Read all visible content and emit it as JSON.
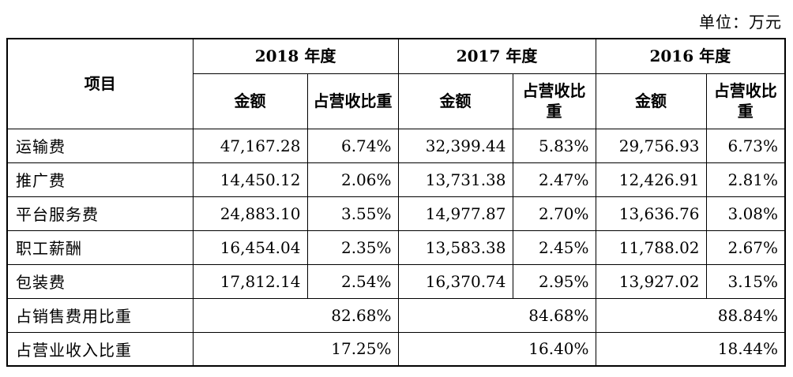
{
  "unit_label": "单位：万元",
  "headers": {
    "item": "项目",
    "years": [
      "2018 年度",
      "2017 年度",
      "2016 年度"
    ],
    "amount": "金额",
    "ratio_2018": "占营收比重",
    "ratio_2017": "占营收比重",
    "ratio_2016": "占营收比重"
  },
  "rows": [
    {
      "label": "运输费",
      "values": [
        "47,167.28",
        "6.74%",
        "32,399.44",
        "5.83%",
        "29,756.93",
        "6.73%"
      ]
    },
    {
      "label": "推广费",
      "values": [
        "14,450.12",
        "2.06%",
        "13,731.38",
        "2.47%",
        "12,426.91",
        "2.81%"
      ]
    },
    {
      "label": "平台服务费",
      "values": [
        "24,883.10",
        "3.55%",
        "14,977.87",
        "2.70%",
        "13,636.76",
        "3.08%"
      ]
    },
    {
      "label": "职工薪酬",
      "values": [
        "16,454.04",
        "2.35%",
        "13,583.38",
        "2.45%",
        "11,788.02",
        "2.67%"
      ]
    },
    {
      "label": "包装费",
      "values": [
        "17,812.14",
        "2.54%",
        "16,370.74",
        "2.95%",
        "13,927.02",
        "3.15%"
      ]
    }
  ],
  "summary_rows": [
    {
      "label": "占销售费用比重",
      "values": [
        "82.68%",
        "84.68%",
        "88.84%"
      ]
    },
    {
      "label": "占营业收入比重",
      "values": [
        "17.25%",
        "16.40%",
        "18.44%"
      ]
    }
  ]
}
